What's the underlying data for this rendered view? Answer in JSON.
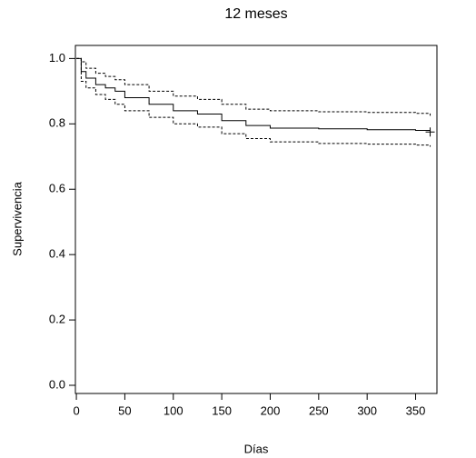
{
  "chart_data": {
    "type": "step",
    "title": "12 meses",
    "x_label": "Días",
    "y_label": "Supervivencia",
    "x": [
      0,
      5,
      10,
      20,
      30,
      40,
      50,
      75,
      100,
      125,
      150,
      175,
      200,
      250,
      300,
      350,
      365
    ],
    "series": [
      {
        "color": "#000000",
        "dash": "solid",
        "values": [
          1.0,
          0.96,
          0.94,
          0.92,
          0.91,
          0.9,
          0.88,
          0.86,
          0.84,
          0.83,
          0.81,
          0.795,
          0.787,
          0.785,
          0.782,
          0.78,
          0.775
        ]
      },
      {
        "color": "#000000",
        "dash": "dashed",
        "values": [
          1.0,
          0.99,
          0.97,
          0.955,
          0.945,
          0.935,
          0.92,
          0.9,
          0.885,
          0.875,
          0.86,
          0.845,
          0.84,
          0.837,
          0.835,
          0.832,
          0.825
        ]
      },
      {
        "color": "#000000",
        "dash": "dashed",
        "values": [
          1.0,
          0.93,
          0.91,
          0.89,
          0.875,
          0.86,
          0.84,
          0.82,
          0.8,
          0.79,
          0.77,
          0.755,
          0.745,
          0.74,
          0.738,
          0.735,
          0.73
        ]
      }
    ],
    "xlim": [
      -1,
      372
    ],
    "ylim": [
      -0.025,
      1.04
    ],
    "xticks": [
      0,
      50,
      100,
      150,
      200,
      250,
      300,
      350
    ],
    "yticks": [
      {
        "value": 0,
        "label": "0.0"
      },
      0.2,
      0.4,
      0.6,
      0.8,
      {
        "value": 1,
        "label": "1.0"
      }
    ]
  }
}
